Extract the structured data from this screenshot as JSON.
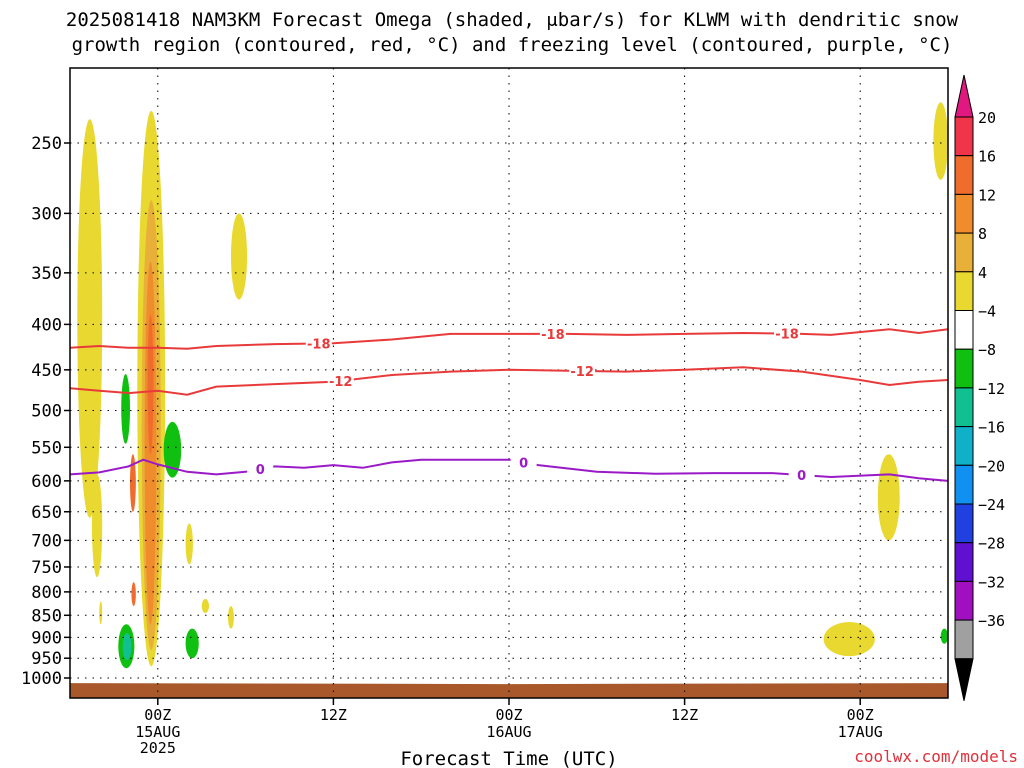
{
  "title": {
    "line1": "2025081418 NAM3KM Forecast Omega (shaded, μbar/s) for KLWM with dendritic snow",
    "line2": "growth region (contoured, red, °C) and freezing level (contoured, purple, °C)"
  },
  "credit": "coolwx.com/models",
  "chart_data": {
    "type": "time-height cross-section",
    "title": "2025081418 NAM3KM Forecast Omega (shaded, μbar/s) for KLWM with dendritic snow growth region (contoured, red, °C) and freezing level (contoured, purple, °C)",
    "xlabel": "Forecast Time (UTC)",
    "ylabel": "",
    "x_unit": "hours since 2025-08-14 18Z",
    "xlim": [
      0,
      60
    ],
    "x_ticks": [
      {
        "x": 6,
        "label": "00Z",
        "sub": [
          "15AUG",
          "2025"
        ]
      },
      {
        "x": 18,
        "label": "12Z",
        "sub": []
      },
      {
        "x": 30,
        "label": "00Z",
        "sub": [
          "16AUG"
        ]
      },
      {
        "x": 42,
        "label": "12Z",
        "sub": []
      },
      {
        "x": 54,
        "label": "00Z",
        "sub": [
          "17AUG"
        ]
      }
    ],
    "y_scale": "log-pressure (inverted)",
    "ylim": [
      1025,
      200
    ],
    "y_ticks": [
      250,
      300,
      350,
      400,
      450,
      500,
      550,
      600,
      650,
      700,
      750,
      800,
      850,
      900,
      950,
      1000
    ],
    "grid": "dotted at y ticks",
    "colorbar": {
      "unit": "μbar/s",
      "labels": [
        "20",
        "16",
        "12",
        "8",
        "4",
        "−4",
        "−8",
        "−12",
        "−16",
        "−20",
        "−24",
        "−28",
        "−32",
        "−36"
      ],
      "colors": [
        "#f0344a",
        "#f06c2c",
        "#f08c2c",
        "#e8b038",
        "#e8d830",
        "#ffffff",
        "#10c010",
        "#10c090",
        "#10b0c8",
        "#1090f0",
        "#2040e0",
        "#6010d0",
        "#a010c0",
        "#a0a0a0"
      ],
      "top_extension_color": "#e01880",
      "bottom_extension_color": "#000000"
    },
    "contours": [
      {
        "label": "-18",
        "color": "#e83a3a",
        "points": [
          [
            0,
            425
          ],
          [
            2,
            423
          ],
          [
            4,
            425
          ],
          [
            6,
            425
          ],
          [
            8,
            426
          ],
          [
            10,
            423
          ],
          [
            14,
            421
          ],
          [
            18,
            420
          ],
          [
            22,
            416
          ],
          [
            26,
            410
          ],
          [
            30,
            410
          ],
          [
            34,
            410
          ],
          [
            38,
            411
          ],
          [
            42,
            410
          ],
          [
            46,
            409
          ],
          [
            50,
            410
          ],
          [
            52,
            411
          ],
          [
            56,
            405
          ],
          [
            58,
            409
          ],
          [
            60,
            405
          ]
        ],
        "label_x": [
          17,
          33,
          49
        ]
      },
      {
        "label": "-12",
        "color": "#e83a3a",
        "points": [
          [
            0,
            472
          ],
          [
            2,
            475
          ],
          [
            4,
            478
          ],
          [
            6,
            475
          ],
          [
            8,
            480
          ],
          [
            10,
            470
          ],
          [
            14,
            467
          ],
          [
            18,
            464
          ],
          [
            22,
            456
          ],
          [
            26,
            452
          ],
          [
            30,
            450
          ],
          [
            34,
            451
          ],
          [
            38,
            452
          ],
          [
            42,
            450
          ],
          [
            46,
            447
          ],
          [
            50,
            452
          ],
          [
            54,
            462
          ],
          [
            56,
            468
          ],
          [
            58,
            464
          ],
          [
            60,
            462
          ]
        ],
        "label_x": [
          18.5,
          35
        ]
      },
      {
        "label": "0",
        "color": "#9a1ac8",
        "points": [
          [
            0,
            590
          ],
          [
            2,
            587
          ],
          [
            4,
            578
          ],
          [
            5,
            568
          ],
          [
            6,
            575
          ],
          [
            8,
            586
          ],
          [
            10,
            590
          ],
          [
            12,
            586
          ],
          [
            14,
            578
          ],
          [
            16,
            580
          ],
          [
            18,
            576
          ],
          [
            20,
            580
          ],
          [
            22,
            572
          ],
          [
            24,
            568
          ],
          [
            26,
            568
          ],
          [
            28,
            568
          ],
          [
            30,
            568
          ],
          [
            32,
            576
          ],
          [
            36,
            586
          ],
          [
            40,
            589
          ],
          [
            44,
            588
          ],
          [
            48,
            588
          ],
          [
            52,
            594
          ],
          [
            56,
            590
          ],
          [
            58,
            596
          ],
          [
            60,
            600
          ]
        ],
        "label_x": [
          13,
          31,
          50
        ]
      }
    ],
    "shaded_regions": [
      {
        "value": 4,
        "x": [
          0.5,
          2.2
        ],
        "p": [
          235,
          660
        ]
      },
      {
        "value": 4,
        "x": [
          4.6,
          6.5
        ],
        "p": [
          230,
          970
        ]
      },
      {
        "value": 8,
        "x": [
          4.9,
          6.2
        ],
        "p": [
          290,
          930
        ]
      },
      {
        "value": 12,
        "x": [
          5.1,
          5.9
        ],
        "p": [
          340,
          870
        ]
      },
      {
        "value": 16,
        "x": [
          5.3,
          5.7
        ],
        "p": [
          390,
          560
        ]
      },
      {
        "value": 16,
        "x": [
          4.1,
          4.5
        ],
        "p": [
          560,
          650
        ]
      },
      {
        "value": 16,
        "x": [
          4.2,
          4.5
        ],
        "p": [
          780,
          830
        ]
      },
      {
        "value": 4,
        "x": [
          11.0,
          12.1
        ],
        "p": [
          300,
          375
        ]
      },
      {
        "value": 4,
        "x": [
          1.5,
          2.2
        ],
        "p": [
          590,
          770
        ]
      },
      {
        "value": 4,
        "x": [
          7.9,
          8.4
        ],
        "p": [
          670,
          745
        ]
      },
      {
        "value": 4,
        "x": [
          9.0,
          9.5
        ],
        "p": [
          815,
          845
        ]
      },
      {
        "value": 4,
        "x": [
          10.8,
          11.2
        ],
        "p": [
          830,
          880
        ]
      },
      {
        "value": 4,
        "x": [
          2.0,
          2.2
        ],
        "p": [
          820,
          870
        ]
      },
      {
        "value": -8,
        "x": [
          6.4,
          7.6
        ],
        "p": [
          515,
          595
        ]
      },
      {
        "value": -8,
        "x": [
          7.9,
          8.8
        ],
        "p": [
          880,
          950
        ]
      },
      {
        "value": -8,
        "x": [
          3.5,
          4.1
        ],
        "p": [
          455,
          545
        ]
      },
      {
        "value": -8,
        "x": [
          3.3,
          4.4
        ],
        "p": [
          870,
          975
        ]
      },
      {
        "value": -12,
        "x": [
          3.6,
          4.2
        ],
        "p": [
          890,
          955
        ]
      },
      {
        "value": 4,
        "x": [
          55.2,
          56.7
        ],
        "p": [
          560,
          700
        ]
      },
      {
        "value": 4,
        "x": [
          51.5,
          55.0
        ],
        "p": [
          865,
          945
        ]
      },
      {
        "value": 4,
        "x": [
          59.0,
          60.0
        ],
        "p": [
          225,
          275
        ]
      },
      {
        "value": -8,
        "x": [
          59.5,
          60.0
        ],
        "p": [
          880,
          915
        ]
      }
    ],
    "terrain": {
      "color": "#a8582a",
      "surface_pressure": 1008
    }
  }
}
